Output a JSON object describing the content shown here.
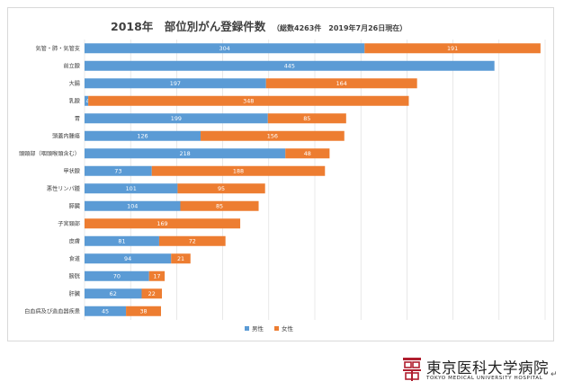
{
  "chart_data": {
    "type": "bar",
    "stacked": true,
    "orientation": "horizontal",
    "title": "2018年　部位別がん登録件数",
    "subtitle": "（総数4263件　2019年7月26日現在）",
    "categories": [
      "気管・肺・気管支",
      "前立腺",
      "大腸",
      "乳腺",
      "胃",
      "頭蓋内腫瘍",
      "頭頸部（咽頭喉頭含む）",
      "甲状腺",
      "悪性リンパ腫",
      "膵臓",
      "子宮頸部",
      "皮膚",
      "食道",
      "膀胱",
      "肝臓",
      "白血病及び造血器疾患"
    ],
    "series": [
      {
        "name": "男性",
        "color": "#5b9bd5",
        "values": [
          304,
          445,
          197,
          4,
          199,
          126,
          218,
          73,
          101,
          104,
          0,
          81,
          94,
          70,
          62,
          45
        ],
        "labels": [
          "304",
          "445",
          "197",
          "4",
          "199",
          "126",
          "218",
          "73",
          "101",
          "104",
          "",
          "81",
          "94",
          "70",
          "62",
          "45"
        ]
      },
      {
        "name": "女性",
        "color": "#ed7d31",
        "values": [
          191,
          0,
          164,
          348,
          85,
          156,
          48,
          188,
          95,
          85,
          169,
          72,
          21,
          17,
          22,
          38
        ],
        "labels": [
          "191",
          "",
          "164",
          "348",
          "85",
          "156",
          "48",
          "188",
          "95",
          "85",
          "169",
          "72",
          "21",
          "17",
          "22",
          "38"
        ]
      }
    ],
    "xlim": [
      0,
      500
    ],
    "grid": true,
    "legend": "bottom"
  },
  "logo": {
    "name": "東京医科大学病院",
    "sub": "TOKYO MEDICAL UNIVERSITY HOSPITAL",
    "mark": "↵"
  }
}
